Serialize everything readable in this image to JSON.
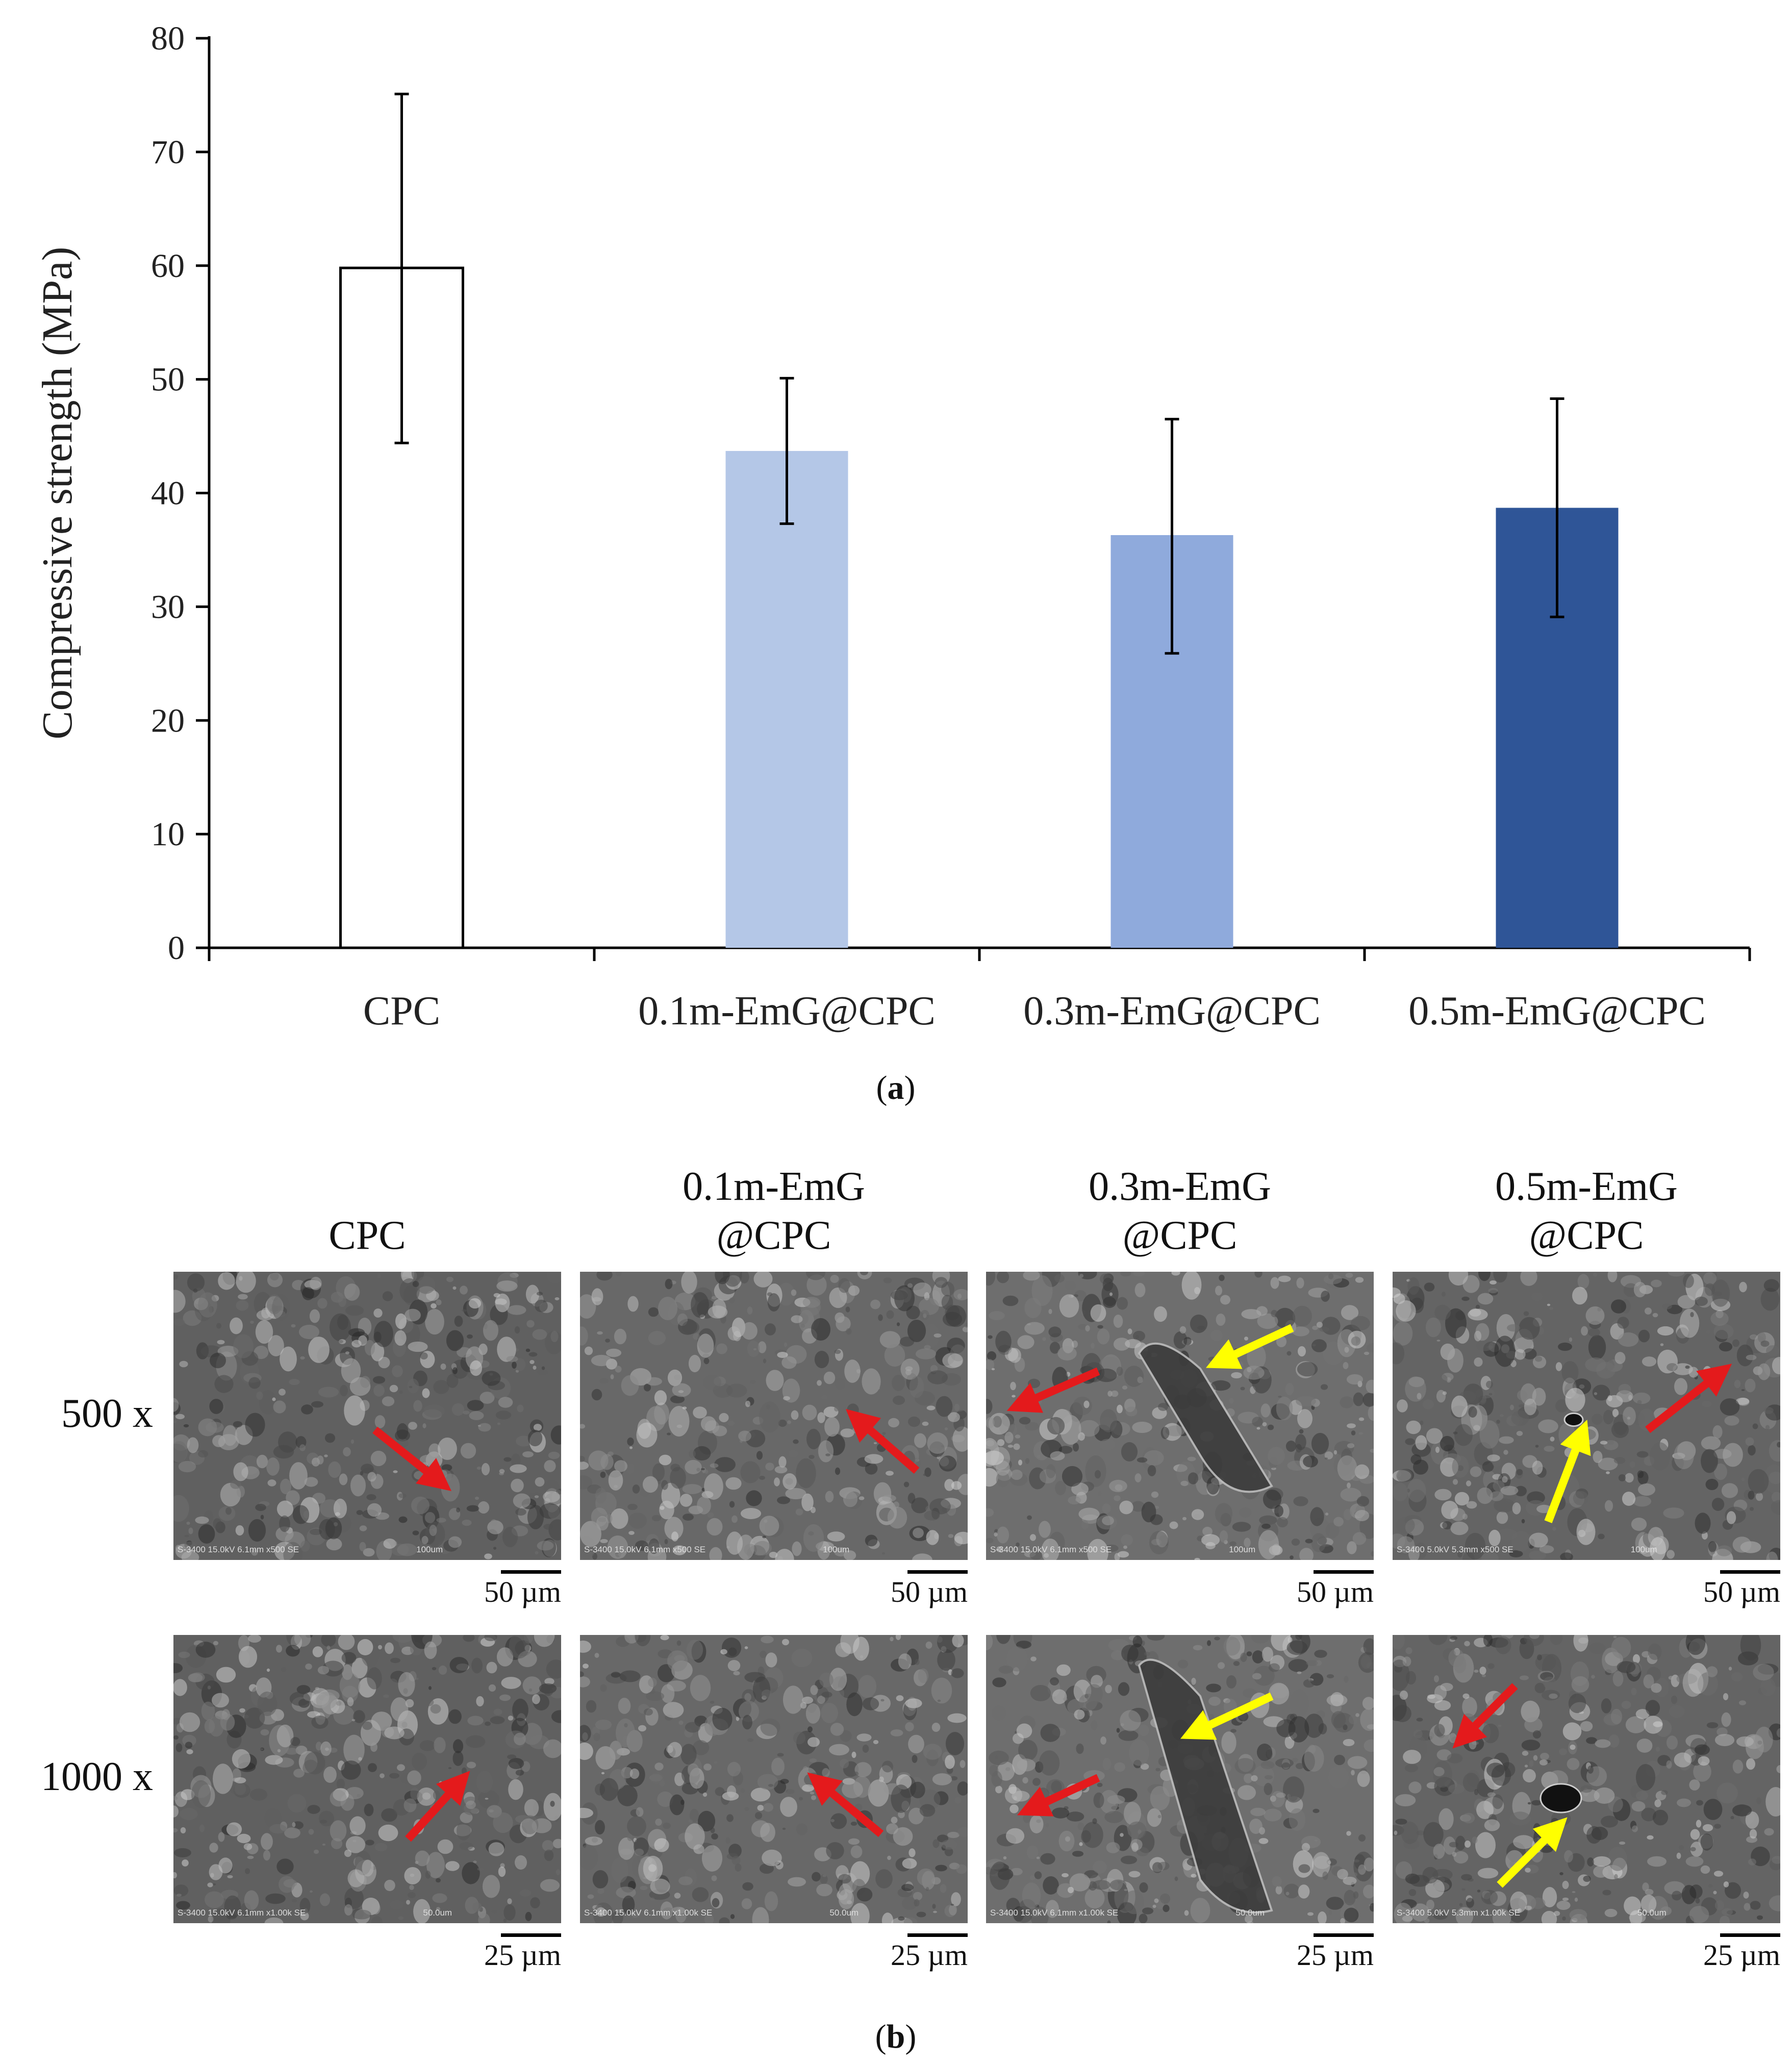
{
  "chart_data": {
    "type": "bar",
    "categories": [
      "CPC",
      "0.1m-EmG@CPC",
      "0.3m-EmG@CPC",
      "0.5m-EmG@CPC"
    ],
    "values": [
      59.8,
      43.7,
      36.3,
      38.7
    ],
    "error_high": [
      75.1,
      50.1,
      46.5,
      48.3
    ],
    "error_low": [
      44.4,
      37.3,
      25.9,
      29.1
    ],
    "bar_colors": [
      "#ffffff",
      "#b4c7e7",
      "#8faadc",
      "#2f5597"
    ],
    "ylabel": "Compressive strength (MPa)",
    "xlabel": "",
    "ylim": [
      0,
      80
    ],
    "yticks": [
      0,
      10,
      20,
      30,
      40,
      50,
      60,
      70,
      80
    ],
    "ytick_labels": [
      "0",
      "10",
      "20",
      "30",
      "40",
      "50",
      "60",
      "70",
      "80"
    ],
    "grid": false
  },
  "panel_a_label": {
    "open": "(",
    "letter": "a",
    "close": ")"
  },
  "panel_b_label": {
    "open": "(",
    "letter": "b",
    "close": ")"
  },
  "sem_grid": {
    "columns": [
      {
        "line1": "",
        "line2": "CPC"
      },
      {
        "line1": "0.1m-EmG",
        "line2": "@CPC"
      },
      {
        "line1": "0.3m-EmG",
        "line2": "@CPC"
      },
      {
        "line1": "0.5m-EmG",
        "line2": "@CPC"
      }
    ],
    "rows": [
      {
        "label": "500 x",
        "scalebar": "50 µm"
      },
      {
        "label": "1000 x",
        "scalebar": "25 µm"
      }
    ],
    "micrograph_captions": [
      [
        "S-3400 15.0kV 6.1mm x500 SE",
        "S-3400 15.0kV 6.1mm x500 SE",
        "S-3400 15.0kV 6.1mm x500 SE",
        "S-3400 5.0kV 5.3mm x500 SE"
      ],
      [
        "S-3400 15.0kV 6.1mm x1.00k SE",
        "S-3400 15.0kV 6.1mm x1.00k SE",
        "S-3400 15.0kV 6.1mm x1.00k SE",
        "S-3400 5.0kV 5.3mm x1.00k SE"
      ]
    ],
    "micrograph_scale_text": [
      "100um",
      "50.0um"
    ],
    "arrow_colors": {
      "red": "#e41a1c",
      "yellow": "#ffff00"
    }
  }
}
